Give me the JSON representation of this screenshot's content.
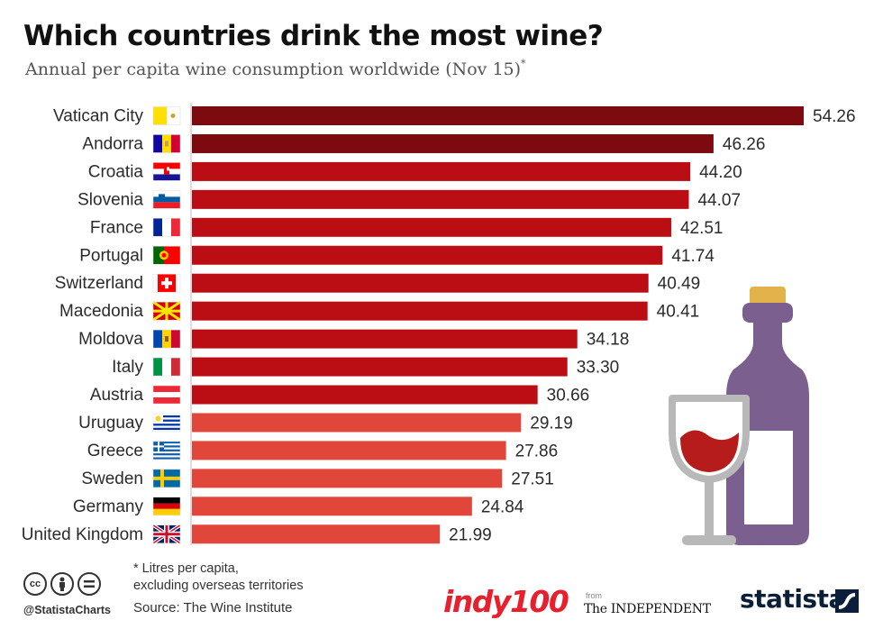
{
  "header": {
    "title": "Which countries drink the most wine?",
    "subtitle": "Annual per capita wine consumption worldwide (Nov 15)",
    "subtitle_mark": "*"
  },
  "chart_data": {
    "type": "bar",
    "orientation": "horizontal",
    "categories": [
      "Vatican City",
      "Andorra",
      "Croatia",
      "Slovenia",
      "France",
      "Portugal",
      "Switzerland",
      "Macedonia",
      "Moldova",
      "Italy",
      "Austria",
      "Uruguay",
      "Greece",
      "Sweden",
      "Germany",
      "United Kingdom"
    ],
    "values": [
      54.26,
      46.26,
      44.2,
      44.07,
      42.51,
      41.74,
      40.49,
      40.41,
      34.18,
      33.3,
      30.66,
      29.19,
      27.86,
      27.51,
      24.84,
      21.99
    ],
    "value_labels": [
      "54.26",
      "46.26",
      "44.20",
      "44.07",
      "42.51",
      "41.74",
      "40.49",
      "40.41",
      "34.18",
      "33.30",
      "30.66",
      "29.19",
      "27.86",
      "27.51",
      "24.84",
      "21.99"
    ],
    "bar_colors": [
      "#7d0a0e",
      "#7d0a0e",
      "#bb0d14",
      "#bb0d14",
      "#bb0d14",
      "#bb0d14",
      "#bb0d14",
      "#bb0d14",
      "#bb0d14",
      "#bb0d14",
      "#bb0d14",
      "#e0473a",
      "#e0473a",
      "#e0473a",
      "#e0473a",
      "#e0473a"
    ],
    "flag_icons": [
      "vatican-flag-icon",
      "andorra-flag-icon",
      "croatia-flag-icon",
      "slovenia-flag-icon",
      "france-flag-icon",
      "portugal-flag-icon",
      "switzerland-flag-icon",
      "macedonia-flag-icon",
      "moldova-flag-icon",
      "italy-flag-icon",
      "austria-flag-icon",
      "uruguay-flag-icon",
      "greece-flag-icon",
      "sweden-flag-icon",
      "germany-flag-icon",
      "uk-flag-icon"
    ],
    "xlim": [
      0,
      54.26
    ],
    "grid": false,
    "legend": "none"
  },
  "illustration": {
    "icons": [
      "wine-bottle-icon",
      "wine-glass-icon"
    ],
    "bottle_color": "#7b5f8e",
    "wine_color": "#b71c1c"
  },
  "footer": {
    "footnote": "* Litres per capita,\nexcluding overseas territories",
    "source": "Source: The Wine Institute",
    "handle": "@StatistaCharts",
    "indy_logo": "indy100",
    "from_label": "from",
    "independent_logo": "The INDEPENDENT",
    "statista_logo": "statista"
  }
}
